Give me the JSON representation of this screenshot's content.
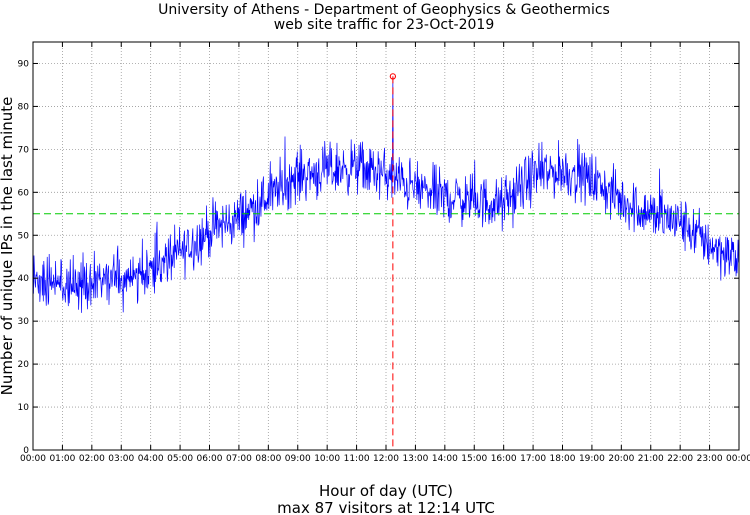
{
  "chart_data": {
    "type": "line",
    "title": "University of Athens - Department of Geophysics & Geothermics",
    "subtitle": "web site traffic for 23-Oct-2019",
    "xlabel": "Hour of day (UTC)",
    "ylabel": "Number of unique IPs in the last minute",
    "footer": "max 87 visitors at 12:14 UTC",
    "xlim": [
      "00:00",
      "24:00"
    ],
    "ylim": [
      0,
      95
    ],
    "x_tick_labels": [
      "00:00",
      "01:00",
      "02:00",
      "03:00",
      "04:00",
      "05:00",
      "06:00",
      "07:00",
      "08:00",
      "09:00",
      "10:00",
      "11:00",
      "12:00",
      "13:00",
      "14:00",
      "15:00",
      "16:00",
      "17:00",
      "18:00",
      "19:00",
      "20:00",
      "21:00",
      "22:00",
      "23:00",
      "00:00"
    ],
    "y_ticks": [
      0,
      10,
      20,
      30,
      40,
      50,
      60,
      70,
      80,
      90
    ],
    "grid": true,
    "series": [
      {
        "hours": [
          "00:00",
          "01:00",
          "02:00",
          "03:00",
          "04:00",
          "05:00",
          "06:00",
          "07:00",
          "08:00",
          "09:00",
          "10:00",
          "11:00",
          "12:00",
          "13:00",
          "14:00",
          "15:00",
          "16:00",
          "17:00",
          "18:00",
          "19:00",
          "20:00",
          "21:00",
          "22:00",
          "23:00",
          "24:00"
        ],
        "values": [
          39,
          38,
          39,
          40,
          42,
          46,
          51,
          54,
          59,
          64,
          65,
          66,
          64,
          61,
          59,
          58,
          57,
          64,
          65,
          63,
          58,
          55,
          53,
          48,
          44
        ],
        "color": "#0000ff"
      }
    ],
    "mean_line": {
      "value": 55,
      "color": "#00cc00"
    },
    "max_marker": {
      "x": "12:14",
      "value": 87,
      "color": "#ff0000"
    }
  }
}
